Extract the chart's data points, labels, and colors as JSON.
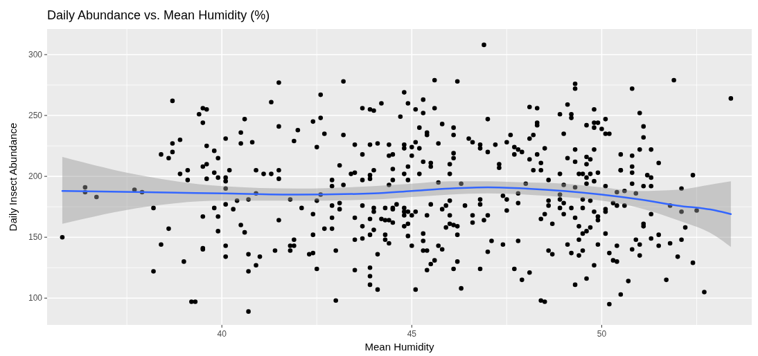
{
  "chart_data": {
    "type": "scatter",
    "title": "Daily Abundance vs. Mean Humidity (%)",
    "xlabel": "Mean Humidity",
    "ylabel": "Daily Insect Abundance",
    "xlim": [
      35.4,
      53.95
    ],
    "ylim": [
      78,
      321
    ],
    "xticks": [
      {
        "value": 37.5,
        "label": null
      },
      40,
      {
        "value": 42.5,
        "label": null
      },
      45,
      {
        "value": 47.5,
        "label": null
      },
      50,
      {
        "value": 52.5,
        "label": null
      }
    ],
    "yticks": [
      100,
      {
        "value": 125,
        "label": null
      },
      150,
      {
        "value": 175,
        "label": null
      },
      200,
      {
        "value": 225,
        "label": null
      },
      250,
      {
        "value": 275,
        "label": null
      },
      300
    ],
    "grid": true,
    "series": [
      {
        "marker": "circle",
        "color": "#000000",
        "x": [
          35.8,
          36.4,
          36.4,
          36.7,
          37.7,
          37.9,
          38.2,
          38.2,
          38.4,
          38.4,
          38.6,
          38.6,
          38.7,
          38.7,
          38.9,
          38.7,
          39.0,
          38.9,
          39.1,
          39.1,
          39.2,
          39.3,
          39.4,
          39.5,
          39.6,
          39.5,
          39.6,
          39.8,
          39.9,
          39.6,
          39.5,
          39.8,
          39.6,
          39.9,
          40.1,
          40.1,
          40.1,
          40.1,
          40.2,
          40.1,
          39.8,
          40.3,
          40.4,
          39.5,
          39.9,
          39.9,
          39.5,
          39.5,
          40.1,
          40.1,
          40.5,
          40.6,
          40.7,
          41.0,
          40.9,
          40.7,
          40.7,
          41.4,
          41.5,
          40.6,
          40.5,
          40.5,
          40.8,
          40.9,
          41.1,
          41.3,
          41.5,
          41.5,
          41.3,
          41.5,
          41.5,
          40.7,
          40.9,
          42.0,
          41.9,
          42.4,
          42.6,
          42.6,
          42.7,
          42.5,
          43.2,
          43.2,
          43.5,
          43.7,
          43.7,
          43.9,
          44.0,
          44.2,
          44.1,
          44.4,
          43.9,
          43.1,
          42.9,
          42.9,
          43.2,
          43.4,
          43.5,
          43.7,
          43.9,
          43.9,
          44.0,
          44.4,
          44.5,
          44.5,
          44.5,
          44.4,
          44.7,
          44.8,
          44.9,
          45.1,
          45.3,
          45.3,
          45.6,
          45.6,
          46.2,
          46.9,
          45.2,
          45.4,
          45.4,
          45.8,
          46.1,
          46.1,
          45.7,
          44.8,
          44.8,
          45.0,
          45.1,
          45.2,
          45.0,
          44.9,
          45.3,
          45.5,
          45.5,
          44.8,
          44.9,
          45.2,
          46.0,
          46.0,
          46.1,
          46.1,
          46.5,
          46.6,
          46.8,
          46.8,
          47.0,
          47.0,
          47.2,
          47.3,
          47.3,
          47.5,
          47.6,
          47.7,
          47.7,
          45.7,
          46.3,
          41.8,
          42.1,
          42.4,
          42.5,
          42.6,
          42.9,
          43.1,
          43.1,
          42.9,
          42.7,
          42.9,
          42.4,
          41.9,
          41.8,
          41.9,
          41.8,
          42.3,
          42.4,
          42.5,
          43.0,
          43.0,
          43.5,
          43.5,
          43.5,
          43.7,
          43.7,
          43.9,
          43.7,
          43.9,
          44.0,
          44.1,
          43.9,
          43.9,
          43.9,
          44.1,
          44.0,
          44.0,
          44.2,
          44.3,
          44.3,
          44.5,
          44.5,
          44.6,
          44.4,
          44.5,
          44.3,
          44.3,
          44.4,
          44.8,
          44.8,
          44.8,
          44.9,
          45.0,
          45.1,
          44.8,
          44.9,
          44.9,
          45.0,
          45.1,
          45.3,
          45.3,
          45.3,
          45.4,
          45.5,
          45.4,
          45.5,
          45.4,
          45.6,
          45.7,
          45.8,
          45.8,
          45.9,
          46.0,
          46.0,
          45.9,
          46.0,
          46.1,
          46.2,
          46.2,
          46.1,
          46.2,
          46.3,
          46.4,
          46.6,
          46.6,
          46.8,
          46.8,
          46.8,
          46.9,
          47.0,
          47.1,
          47.0,
          47.4,
          47.5,
          47.5,
          47.7,
          47.8,
          47.4,
          48.1,
          48.3,
          48.3,
          48.3,
          48.2,
          48.1,
          47.8,
          47.9,
          48.5,
          48.3,
          48.1,
          48.4,
          48.4,
          48.2,
          48.6,
          48.9,
          49.0,
          48.9,
          49.1,
          49.2,
          49.2,
          49.3,
          49.3,
          49.1,
          49.3,
          49.3,
          49.6,
          49.8,
          49.8,
          49.8,
          49.9,
          50.0,
          50.1,
          50.1,
          50.2,
          49.6,
          49.7,
          49.6,
          49.8,
          49.4,
          49.5,
          49.7,
          49.9,
          49.6,
          49.6,
          49.8,
          50.1,
          50.5,
          50.5,
          50.5,
          50.8,
          50.8,
          50.8,
          50.8,
          51.0,
          51.1,
          51.1,
          51.0,
          51.3,
          51.5,
          51.9,
          50.8,
          53.4,
          52.4,
          51.2,
          51.3,
          51.1,
          51.3,
          52.1,
          50.9,
          50.6,
          50.4,
          49.0,
          49.3,
          48.9,
          48.0,
          47.8,
          47.8,
          48.6,
          48.6,
          48.9,
          48.9,
          49.0,
          49.0,
          49.2,
          48.5,
          48.4,
          48.7,
          49.3,
          49.5,
          49.5,
          49.7,
          49.8,
          49.9,
          49.9,
          50.1,
          50.1,
          50.3,
          50.4,
          50.6,
          51.3,
          49.4,
          49.5,
          49.6,
          49.7,
          50.1,
          51.1,
          51.1,
          51.8,
          52.1,
          52.5,
          52.2,
          51.5,
          49.1,
          49.4,
          49.9,
          50.4,
          50.9,
          50.8,
          51.0,
          51.3,
          51.5,
          51.8,
          52.1,
          48.6,
          48.7,
          49.2,
          49.4,
          49.5,
          50.2,
          50.3,
          50.4,
          51.0,
          52.0,
          52.4,
          49.8,
          49.6,
          49.3,
          47.9,
          48.1,
          48.4,
          48.5,
          50.2,
          50.5,
          50.7,
          51.7,
          52.7
        ],
        "values": [
          150,
          191,
          187,
          183,
          189,
          187,
          174,
          122,
          144,
          218,
          157,
          215,
          220,
          227,
          230,
          262,
          130,
          202,
          205,
          197,
          97,
          97,
          251,
          256,
          255,
          244,
          225,
          221,
          215,
          210,
          208,
          203,
          198,
          199,
          231,
          199,
          196,
          190,
          205,
          177,
          174,
          173,
          180,
          167,
          167,
          155,
          140,
          141,
          143,
          134,
          160,
          154,
          136,
          134,
          127,
          122,
          89,
          139,
          164,
          247,
          236,
          227,
          228,
          205,
          202,
          202,
          205,
          198,
          261,
          277,
          241,
          181,
          186,
          238,
          229,
          245,
          267,
          248,
          235,
          224,
          278,
          234,
          226,
          218,
          256,
          255,
          254,
          260,
          227,
          226,
          226,
          209,
          197,
          192,
          193,
          202,
          203,
          197,
          201,
          198,
          205,
          217,
          218,
          206,
          197,
          193,
          249,
          269,
          260,
          255,
          263,
          252,
          256,
          279,
          278,
          308,
          240,
          236,
          234,
          243,
          240,
          234,
          227,
          226,
          223,
          224,
          228,
          223,
          217,
          208,
          212,
          211,
          208,
          202,
          197,
          202,
          210,
          202,
          219,
          215,
          231,
          228,
          226,
          223,
          247,
          220,
          226,
          207,
          210,
          228,
          234,
          224,
          218,
          195,
          194,
          181,
          174,
          169,
          180,
          185,
          176,
          173,
          178,
          166,
          157,
          157,
          152,
          148,
          143,
          143,
          139,
          136,
          137,
          124,
          139,
          98,
          148,
          123,
          166,
          176,
          159,
          165,
          149,
          152,
          156,
          136,
          125,
          118,
          111,
          107,
          174,
          171,
          165,
          164,
          174,
          174,
          173,
          177,
          164,
          162,
          148,
          152,
          145,
          174,
          168,
          171,
          171,
          168,
          171,
          159,
          161,
          151,
          143,
          107,
          153,
          147,
          139,
          139,
          177,
          168,
          128,
          123,
          131,
          143,
          140,
          173,
          176,
          180,
          168,
          158,
          161,
          160,
          159,
          152,
          124,
          130,
          108,
          176,
          168,
          162,
          181,
          177,
          124,
          164,
          168,
          147,
          138,
          144,
          181,
          172,
          124,
          147,
          184,
          257,
          256,
          242,
          244,
          234,
          231,
          222,
          220,
          223,
          218,
          214,
          211,
          205,
          205,
          197,
          202,
          235,
          251,
          259,
          251,
          248,
          276,
          272,
          215,
          212,
          222,
          242,
          255,
          244,
          240,
          244,
          239,
          247,
          235,
          235,
          216,
          214,
          210,
          222,
          202,
          202,
          202,
          203,
          199,
          194,
          196,
          192,
          218,
          205,
          205,
          217,
          208,
          203,
          194,
          252,
          241,
          232,
          222,
          222,
          211,
          279,
          272,
          264,
          201,
          201,
          199,
          192,
          192,
          190,
          186,
          188,
          187,
          193,
          191,
          185,
          194,
          186,
          178,
          180,
          176,
          181,
          174,
          178,
          169,
          174,
          169,
          165,
          161,
          166,
          181,
          174,
          180,
          171,
          167,
          164,
          173,
          171,
          178,
          176,
          176,
          169,
          159,
          153,
          155,
          158,
          153,
          161,
          159,
          176,
          171,
          172,
          158,
          152,
          144,
          148,
          144,
          143,
          148,
          140,
          144,
          149,
          143,
          145,
          148,
          139,
          136,
          137,
          135,
          139,
          137,
          131,
          130,
          135,
          134,
          129,
          127,
          116,
          111,
          115,
          121,
          98,
          97,
          95,
          103,
          114,
          115,
          105
        ]
      },
      {
        "type": "line",
        "color": "#3366ff",
        "x": [
          35.8,
          38,
          40,
          42,
          44,
          45,
          46,
          47,
          48,
          49,
          50,
          51,
          52,
          53,
          53.4
        ],
        "values": [
          188,
          187,
          186,
          185,
          186,
          188,
          190,
          191,
          190,
          188,
          185,
          181,
          176,
          172,
          169
        ],
        "lower": [
          161,
          175,
          180,
          180,
          181,
          183,
          185,
          186,
          185,
          183,
          180,
          174,
          164,
          151,
          142
        ],
        "upper": [
          216,
          200,
          192,
          190,
          192,
          194,
          196,
          196,
          195,
          194,
          191,
          188,
          189,
          194,
          196
        ]
      }
    ]
  }
}
